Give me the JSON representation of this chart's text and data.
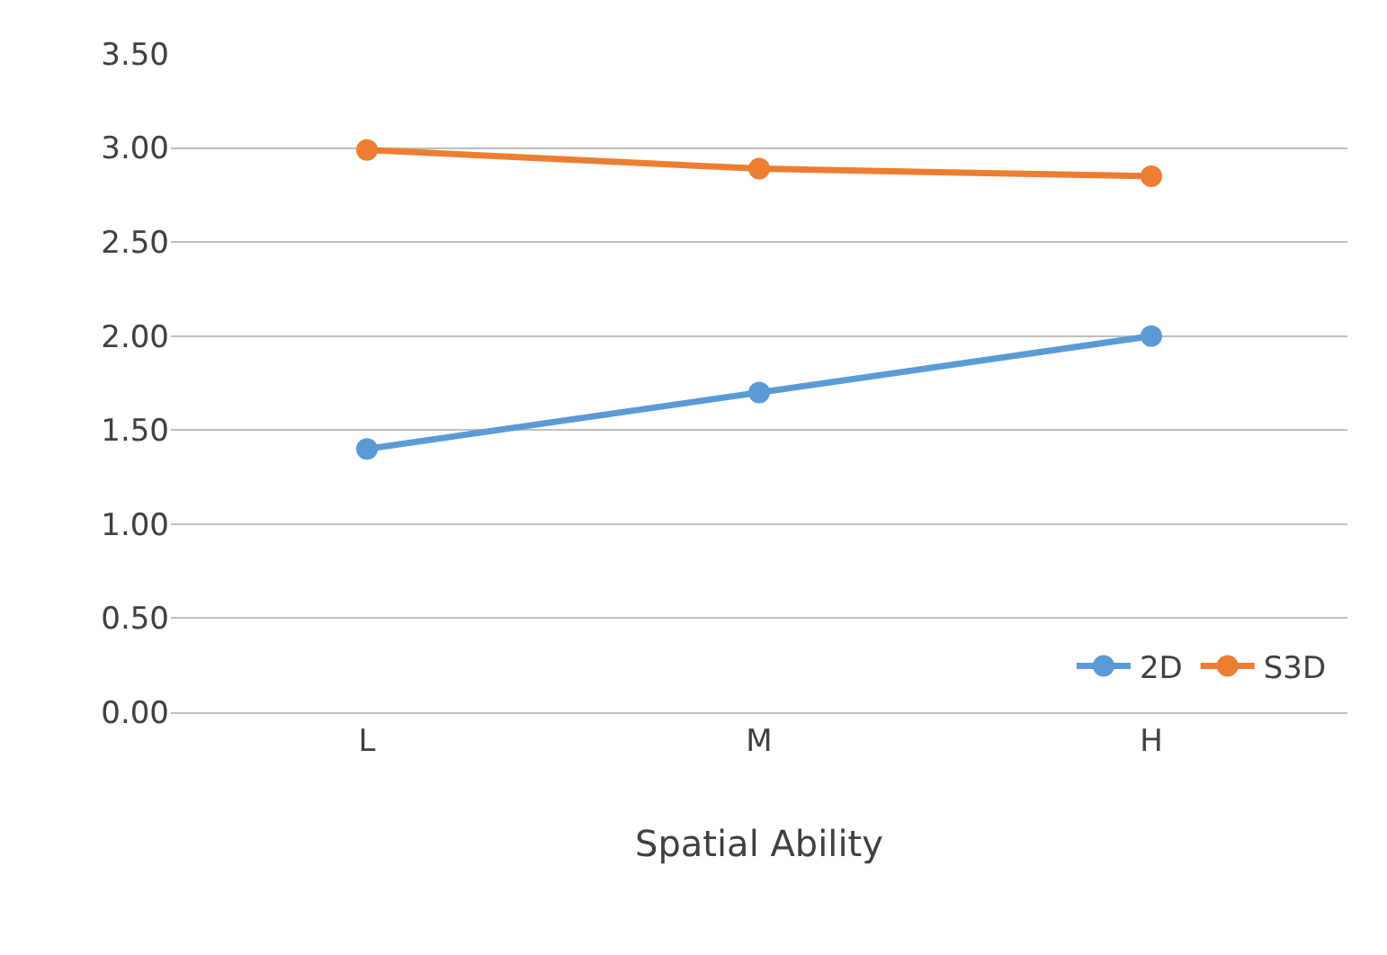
{
  "chart_data": {
    "type": "line",
    "xlabel": "Spatial Ability",
    "categories": [
      "L",
      "M",
      "H"
    ],
    "series": [
      {
        "name": "2D",
        "color": "#5b9bd5",
        "values": [
          1.4,
          1.7,
          2.0
        ]
      },
      {
        "name": "S3D",
        "color": "#ed7d31",
        "values": [
          2.99,
          2.89,
          2.85
        ]
      }
    ],
    "ylim": [
      0,
      3.5
    ],
    "yticks": [
      {
        "value": 0,
        "label": "0.00"
      },
      {
        "value": 0.5,
        "label": "0.50"
      },
      {
        "value": 1,
        "label": "1.00"
      },
      {
        "value": 1.5,
        "label": "1.50"
      },
      {
        "value": 2,
        "label": "2.00"
      },
      {
        "value": 2.5,
        "label": "2.50"
      },
      {
        "value": 3,
        "label": "3.00"
      },
      {
        "value": 3.5,
        "label": "3.50"
      }
    ],
    "grid": "y",
    "legend": "bottom right",
    "marker": "circle",
    "line_style": "solid"
  }
}
